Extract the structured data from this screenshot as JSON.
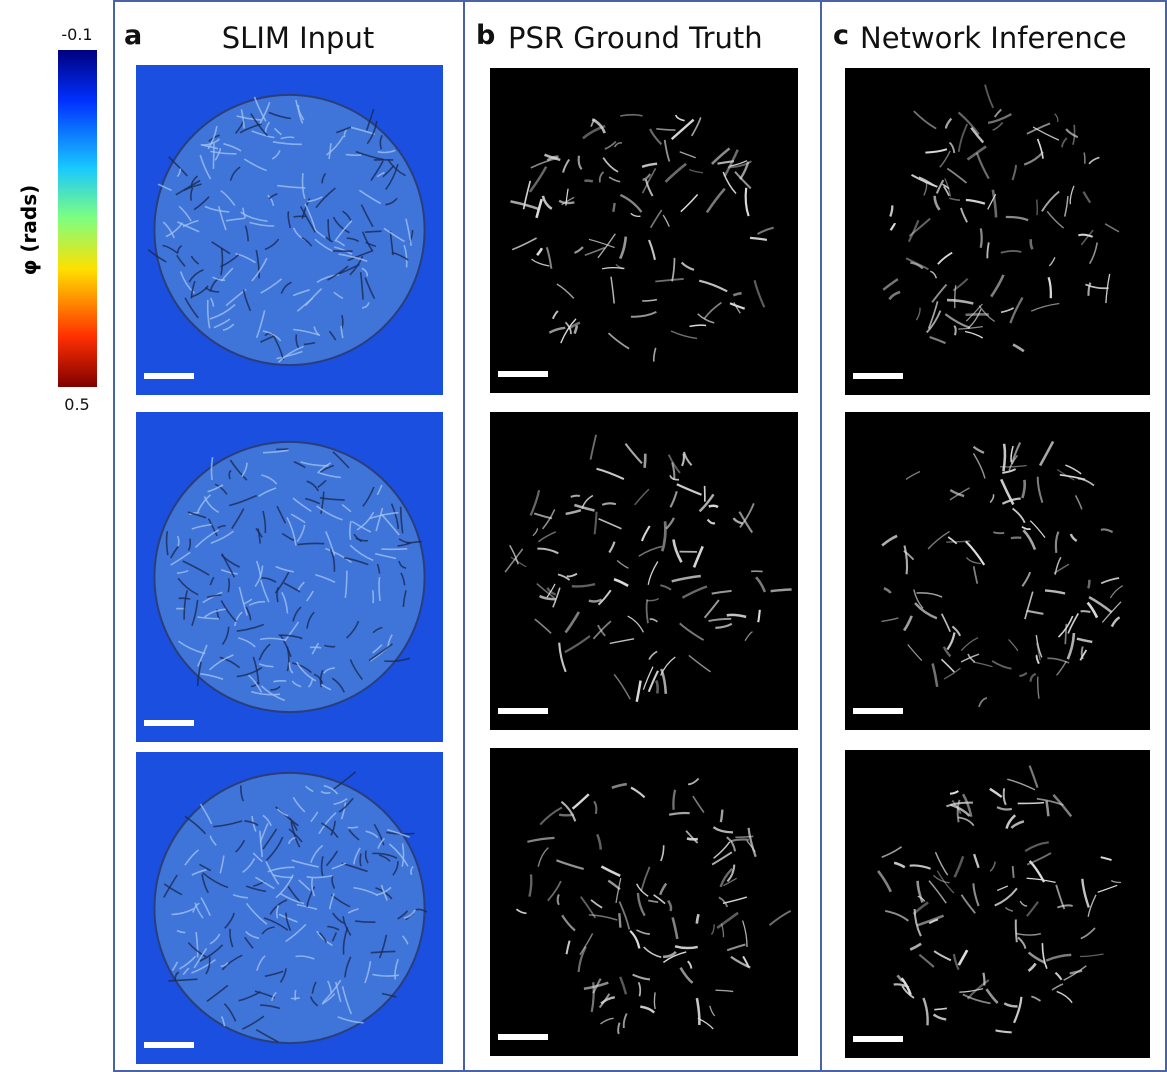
{
  "colorbar": {
    "label": "φ (rads)",
    "top_label": "-0.1",
    "bottom_label": "0.5"
  },
  "panels": [
    {
      "letter": "a",
      "title": "SLIM Input"
    },
    {
      "letter": "b",
      "title": "PSR Ground Truth"
    },
    {
      "letter": "c",
      "title": "Network Inference"
    }
  ]
}
